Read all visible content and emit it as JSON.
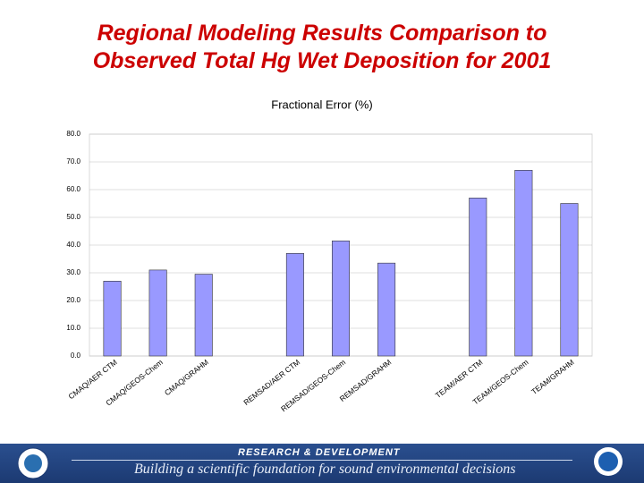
{
  "slide": {
    "title_lines": [
      "Regional Modeling Results Comparison to",
      "Observed Total Hg Wet Deposition for 2001"
    ]
  },
  "footer": {
    "heading": "RESEARCH & DEVELOPMENT",
    "tagline": "Building a scientific foundation for sound environmental decisions"
  },
  "chart_data": {
    "type": "bar",
    "title": "Fractional Error (%)",
    "categories": [
      "CMAQ/AER CTM",
      "CMAQ/GEOS-Chem",
      "CMAQ/GRAHM",
      null,
      "REMSAD/AER CTM",
      "REMSAD/GEOS-Chem",
      "REMSAD/GRAHM",
      null,
      "TEAM/AER CTM",
      "TEAM/GEOS-Chem",
      "TEAM/GRAHM"
    ],
    "values": [
      27,
      31,
      29.5,
      null,
      37,
      41.5,
      33.5,
      null,
      57,
      67,
      55
    ],
    "color": "#9999ff",
    "ylim": [
      0,
      80
    ],
    "yticks": [
      {
        "value": 0,
        "label": "0.0"
      },
      {
        "value": 10,
        "label": "10.0"
      },
      {
        "value": 20,
        "label": "20.0"
      },
      {
        "value": 30,
        "label": "30.0"
      },
      {
        "value": 40,
        "label": "40.0"
      },
      {
        "value": 50,
        "label": "50.0"
      },
      {
        "value": 60,
        "label": "60.0"
      },
      {
        "value": 70,
        "label": "70.0"
      },
      {
        "value": 80,
        "label": "80.0"
      }
    ],
    "grid": true
  }
}
